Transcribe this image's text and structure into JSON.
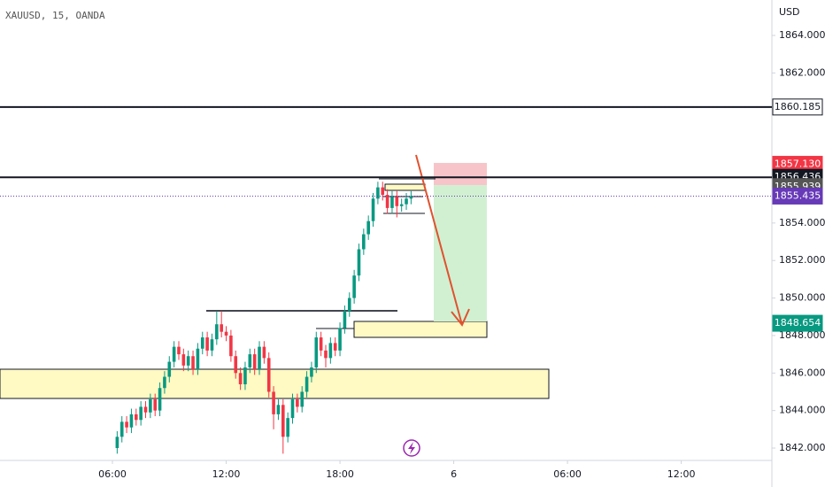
{
  "chart_data": {
    "type": "candlestick",
    "title": "XAUUSD, 15, OANDA",
    "currency": "USD",
    "x": [
      6.25,
      6.5,
      6.75,
      7,
      7.25,
      7.5,
      7.75,
      8,
      8.25,
      8.5,
      8.75,
      9,
      9.25,
      9.5,
      9.75,
      10,
      10.25,
      10.5,
      10.75,
      11,
      11.25,
      11.5,
      11.75,
      12,
      12.25,
      12.5,
      12.75,
      13,
      13.25,
      13.5,
      13.75,
      14,
      14.25,
      14.5,
      14.75,
      15,
      15.25,
      15.5,
      15.75,
      16,
      16.25,
      16.5,
      16.75,
      17,
      17.25,
      17.5,
      17.75,
      18,
      18.25,
      18.5,
      18.75,
      19,
      19.25,
      19.5,
      19.75,
      20,
      20.25,
      20.5,
      20.75,
      21,
      21.25,
      21.5,
      21.75
    ],
    "open": [
      1842.0,
      1842.6,
      1843.4,
      1843.1,
      1843.8,
      1843.5,
      1844.2,
      1843.9,
      1844.6,
      1844.0,
      1845.2,
      1845.8,
      1846.6,
      1847.4,
      1847.0,
      1846.4,
      1846.9,
      1846.2,
      1847.3,
      1847.9,
      1847.2,
      1847.8,
      1848.6,
      1848.2,
      1848.0,
      1846.9,
      1846.0,
      1845.4,
      1846.3,
      1847.0,
      1846.2,
      1847.4,
      1846.8,
      1845.0,
      1843.8,
      1844.3,
      1842.6,
      1843.6,
      1844.6,
      1844.2,
      1845.0,
      1845.8,
      1846.3,
      1847.9,
      1847.2,
      1846.8,
      1847.6,
      1847.2,
      1848.4,
      1849.3,
      1850.0,
      1851.2,
      1852.6,
      1853.4,
      1854.1,
      1855.3,
      1855.9,
      1855.5,
      1854.8,
      1855.4,
      1854.9,
      1855.0,
      1855.3
    ],
    "high": [
      1842.9,
      1843.7,
      1843.7,
      1844.1,
      1844.1,
      1844.5,
      1844.5,
      1844.9,
      1844.9,
      1845.5,
      1846.1,
      1846.9,
      1847.7,
      1847.7,
      1847.3,
      1847.2,
      1847.2,
      1847.6,
      1848.2,
      1848.2,
      1848.1,
      1849.3,
      1849.3,
      1848.5,
      1848.3,
      1847.2,
      1846.3,
      1846.6,
      1847.3,
      1847.3,
      1847.7,
      1847.7,
      1847.1,
      1845.3,
      1844.6,
      1844.6,
      1843.9,
      1844.9,
      1844.9,
      1845.3,
      1846.1,
      1846.6,
      1848.2,
      1848.2,
      1847.5,
      1847.9,
      1847.9,
      1848.7,
      1849.6,
      1850.3,
      1851.5,
      1852.9,
      1853.7,
      1854.4,
      1855.6,
      1856.2,
      1856.2,
      1855.8,
      1855.7,
      1855.7,
      1855.3,
      1855.6,
      1855.7
    ],
    "low": [
      1841.7,
      1842.3,
      1842.8,
      1842.8,
      1843.2,
      1843.2,
      1843.6,
      1843.6,
      1843.7,
      1843.7,
      1844.9,
      1845.5,
      1846.3,
      1846.7,
      1846.1,
      1846.1,
      1845.9,
      1845.9,
      1847.0,
      1846.9,
      1846.9,
      1847.5,
      1847.9,
      1847.7,
      1846.6,
      1845.7,
      1845.1,
      1845.1,
      1846.0,
      1845.9,
      1845.9,
      1846.5,
      1844.7,
      1843.0,
      1843.5,
      1841.7,
      1842.3,
      1843.3,
      1843.9,
      1843.9,
      1844.7,
      1845.5,
      1846.0,
      1846.9,
      1846.3,
      1846.5,
      1846.9,
      1846.9,
      1848.1,
      1849.0,
      1849.7,
      1850.9,
      1852.3,
      1853.1,
      1853.8,
      1855.0,
      1855.2,
      1854.5,
      1854.5,
      1854.3,
      1854.6,
      1854.7,
      1855.0
    ],
    "close": [
      1842.6,
      1843.4,
      1843.1,
      1843.8,
      1843.5,
      1844.2,
      1843.9,
      1844.6,
      1844.0,
      1845.2,
      1845.8,
      1846.6,
      1847.4,
      1847.0,
      1846.4,
      1846.9,
      1846.2,
      1847.3,
      1847.9,
      1847.2,
      1847.8,
      1848.6,
      1848.2,
      1848.0,
      1846.9,
      1846.0,
      1845.4,
      1846.3,
      1847.0,
      1846.2,
      1847.4,
      1846.8,
      1845.0,
      1843.8,
      1844.3,
      1842.6,
      1843.6,
      1844.6,
      1844.2,
      1845.0,
      1845.8,
      1846.3,
      1847.9,
      1847.2,
      1846.8,
      1847.6,
      1847.2,
      1848.4,
      1849.3,
      1850.0,
      1851.2,
      1852.6,
      1853.4,
      1854.1,
      1855.3,
      1855.9,
      1855.5,
      1854.8,
      1855.4,
      1854.9,
      1855.0,
      1855.3,
      1855.435
    ],
    "up_color": "#089981",
    "down_color": "#f23645",
    "xlim": [
      0.07,
      40.78
    ],
    "xticks": [
      {
        "value": 6,
        "label": "06:00"
      },
      {
        "value": 12,
        "label": "12:00"
      },
      {
        "value": 18,
        "label": "18:00"
      },
      {
        "value": 24,
        "label": "6"
      },
      {
        "value": 30,
        "label": "06:00"
      },
      {
        "value": 36,
        "label": "12:00"
      }
    ],
    "ylim": [
      1841.34,
      1865.89
    ],
    "yticks": [
      {
        "value": 1842,
        "label": "1842.000"
      },
      {
        "value": 1844,
        "label": "1844.000"
      },
      {
        "value": 1846,
        "label": "1846.000"
      },
      {
        "value": 1848,
        "label": "1848.000"
      },
      {
        "value": 1850,
        "label": "1850.000"
      },
      {
        "value": 1852,
        "label": "1852.000"
      },
      {
        "value": 1854,
        "label": "1854.000"
      },
      {
        "value": 1862,
        "label": "1862.000"
      },
      {
        "value": 1864,
        "label": "1864.000"
      }
    ],
    "price_labels": [
      {
        "value": 1860.185,
        "color": "#ffffff",
        "text_color": "#131722",
        "line": "solid"
      },
      {
        "value": 1857.13,
        "label": "1857.130",
        "color": "#f23645",
        "text_color": "#ffffff"
      },
      {
        "value": 1856.436,
        "color": "#131722",
        "text_color": "#ffffff",
        "line": "solid"
      },
      {
        "value": 1855.939,
        "color": "#555555",
        "text_color": "#ffffff"
      },
      {
        "value": 1855.435,
        "color": "#673ab7",
        "text_color": "#ffffff",
        "line": "dotted"
      },
      {
        "value": 1848.654,
        "color": "#089981",
        "text_color": "#ffffff"
      }
    ]
  }
}
